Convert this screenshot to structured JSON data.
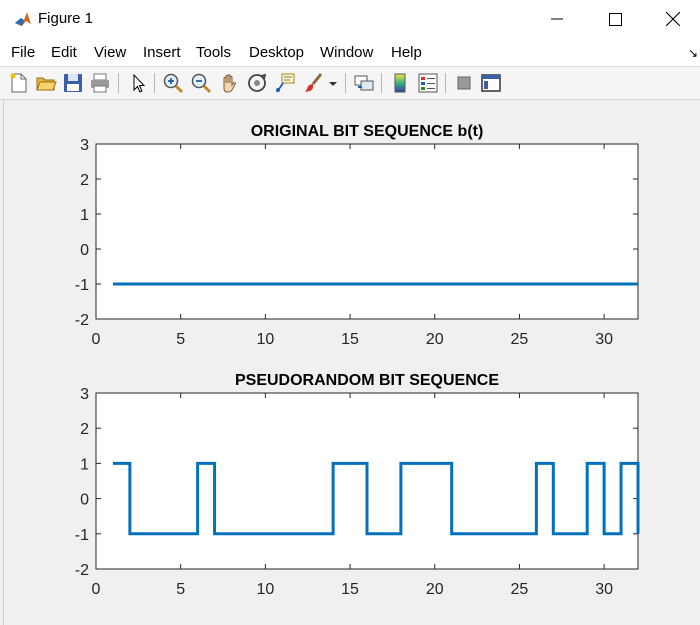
{
  "window": {
    "title": "Figure 1"
  },
  "menu": [
    "File",
    "Edit",
    "View",
    "Insert",
    "Tools",
    "Desktop",
    "Window",
    "Help"
  ],
  "toolbar": {
    "tools": [
      "new-figure-icon",
      "open-file-icon",
      "save-icon",
      "print-icon",
      "pointer-icon",
      "zoom-in-icon",
      "zoom-out-icon",
      "pan-hand-icon",
      "rotate-3d-icon",
      "data-cursor-icon",
      "brush-icon",
      "brush-dropdown-icon",
      "link-plot-icon",
      "colorbar-icon",
      "legend-icon",
      "hide-plot-tools-icon",
      "show-plot-tools-icon"
    ]
  },
  "colors": {
    "line": "#0072BD"
  },
  "chart_data": [
    {
      "type": "line",
      "title": "ORIGINAL BIT SEQUENCE b(t)",
      "xlim": [
        0,
        32
      ],
      "ylim": [
        -2,
        3
      ],
      "xticks": [
        "0",
        "5",
        "10",
        "15",
        "20",
        "25",
        "30"
      ],
      "yticks": [
        "3",
        "2",
        "1",
        "0",
        "-1",
        "-2"
      ],
      "xlabel": "",
      "ylabel": "",
      "step": true,
      "x": [
        1,
        32
      ],
      "y": [
        -1,
        -1
      ]
    },
    {
      "type": "line",
      "title": "PSEUDORANDOM BIT SEQUENCE",
      "xlim": [
        0,
        32
      ],
      "ylim": [
        -2,
        3
      ],
      "xticks": [
        "0",
        "5",
        "10",
        "15",
        "20",
        "25",
        "30"
      ],
      "yticks": [
        "3",
        "2",
        "1",
        "0",
        "-1",
        "-2"
      ],
      "xlabel": "",
      "ylabel": "",
      "step": true,
      "x": [
        1,
        2,
        6,
        7,
        14,
        16,
        18,
        21,
        26,
        27,
        29,
        30,
        31,
        32
      ],
      "y": [
        1,
        -1,
        1,
        -1,
        1,
        -1,
        1,
        -1,
        1,
        -1,
        1,
        -1,
        1,
        -1
      ]
    }
  ]
}
